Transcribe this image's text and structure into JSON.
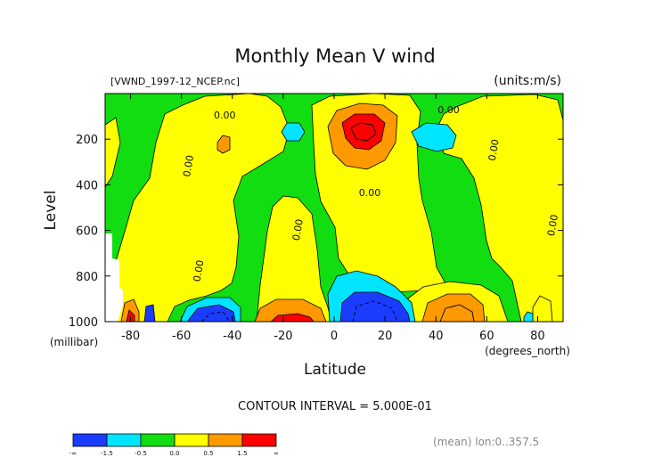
{
  "chart_data": {
    "type": "heatmap",
    "title": "Monthly Mean V wind",
    "dataset_label": "[VWND_1997-12_NCEP.nc]",
    "units_label": "(units:m/s)",
    "xlabel": "Latitude",
    "x_units": "(degrees_north)",
    "ylabel": "Level",
    "y_units": "(millibar)",
    "xlim": [
      -90,
      90
    ],
    "ylim": [
      1000,
      0
    ],
    "x_ticks": [
      -80,
      -60,
      -40,
      -20,
      0,
      20,
      40,
      60,
      80
    ],
    "y_ticks": [
      200,
      400,
      600,
      800,
      1000
    ],
    "contour_interval_text": "CONTOUR INTERVAL = 5.000E-01",
    "footer_text": "(mean) lon:0..357.5",
    "colorbar": {
      "tick_labels": [
        "-∞",
        "-1.5",
        "-0.5",
        "0.0",
        "0.5",
        "1.5",
        "∞"
      ],
      "bins": [
        {
          "range": "< -1.5",
          "color": "#1a3cff"
        },
        {
          "range": "-1.5 to -0.5",
          "color": "#00e5ff"
        },
        {
          "range": "-0.5 to 0.0",
          "color": "#11dd11"
        },
        {
          "range": "0.0 to 0.5",
          "color": "#ffff00"
        },
        {
          "range": "0.5 to 1.5",
          "color": "#ff9900"
        },
        {
          "range": "> 1.5",
          "color": "#ff0000"
        }
      ]
    },
    "contour_labels": [
      {
        "text": "0.00",
        "lat": -56,
        "level": 320
      },
      {
        "text": "0.00",
        "lat": -52,
        "level": 780
      },
      {
        "text": "0.00",
        "lat": -43,
        "level": 110
      },
      {
        "text": "0.00",
        "lat": -13,
        "level": 600
      },
      {
        "text": "0.00",
        "lat": 14,
        "level": 450
      },
      {
        "text": "0.00",
        "lat": 45,
        "level": 85
      },
      {
        "text": "0.00",
        "lat": 64,
        "level": 250
      },
      {
        "text": "0.00",
        "lat": 90,
        "level": 580
      }
    ],
    "regions": [
      {
        "sign": "positive",
        "lat_range": [
          0,
          28
        ],
        "level_range": [
          70,
          350
        ],
        "max_bin": "> 1.5",
        "center": [
          12,
          150
        ]
      },
      {
        "sign": "positive",
        "lat_range": [
          -38,
          -2
        ],
        "level_range": [
          880,
          1000
        ],
        "max_bin": "> 1.5",
        "center": [
          -18,
          990
        ]
      },
      {
        "sign": "positive",
        "lat_range": [
          -90,
          -76
        ],
        "level_range": [
          930,
          1000
        ],
        "max_bin": "> 1.5",
        "center": [
          -82,
          990
        ]
      },
      {
        "sign": "positive",
        "lat_range": [
          32,
          66
        ],
        "level_range": [
          850,
          1000
        ],
        "max_bin": "0.5 to 1.5",
        "center": [
          48,
          960
        ]
      },
      {
        "sign": "negative",
        "lat_range": [
          -68,
          -38
        ],
        "level_range": [
          880,
          1000
        ],
        "max_bin": "< -1.5",
        "center": [
          -52,
          975
        ]
      },
      {
        "sign": "negative",
        "lat_range": [
          -2,
          32
        ],
        "level_range": [
          760,
          1000
        ],
        "max_bin": "< -1.5",
        "center": [
          12,
          950
        ]
      },
      {
        "sign": "negative",
        "lat_range": [
          -28,
          -20
        ],
        "level_range": [
          110,
          210
        ],
        "max_bin": "-1.5 to -0.5",
        "center": [
          -24,
          160
        ]
      },
      {
        "sign": "negative",
        "lat_range": [
          26,
          44
        ],
        "level_range": [
          130,
          230
        ],
        "max_bin": "-1.5 to -0.5",
        "center": [
          36,
          180
        ]
      }
    ]
  }
}
